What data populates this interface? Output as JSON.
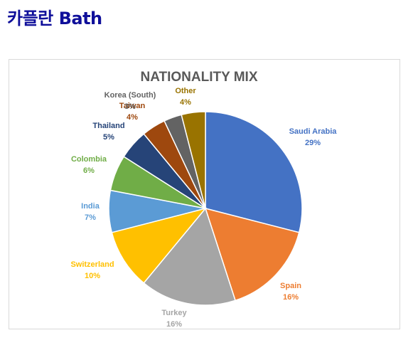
{
  "page": {
    "title": "카플란 Bath"
  },
  "chart_data": {
    "type": "pie",
    "title": "NATIONALITY MIX",
    "slices": [
      {
        "label": "Saudi Arabia",
        "value": 29,
        "value_label": "29%",
        "color": "#4472C4"
      },
      {
        "label": "Spain",
        "value": 16,
        "value_label": "16%",
        "color": "#ED7D31"
      },
      {
        "label": "Turkey",
        "value": 16,
        "value_label": "16%",
        "color": "#A5A5A5"
      },
      {
        "label": "Switzerland",
        "value": 10,
        "value_label": "10%",
        "color": "#FFC000"
      },
      {
        "label": "India",
        "value": 7,
        "value_label": "7%",
        "color": "#5B9BD5"
      },
      {
        "label": "Colombia",
        "value": 6,
        "value_label": "6%",
        "color": "#70AD47"
      },
      {
        "label": "Thailand",
        "value": 5,
        "value_label": "5%",
        "color": "#264478"
      },
      {
        "label": "Taiwan",
        "value": 4,
        "value_label": "4%",
        "color": "#9E480E"
      },
      {
        "label": "Korea (South)",
        "value": 3,
        "value_label": "3%",
        "color": "#636363"
      },
      {
        "label": "Other",
        "value": 4,
        "value_label": "4%",
        "color": "#997300"
      }
    ],
    "start_angle": "12 o'clock",
    "direction": "clockwise",
    "legend": "none",
    "labels": "outside"
  }
}
